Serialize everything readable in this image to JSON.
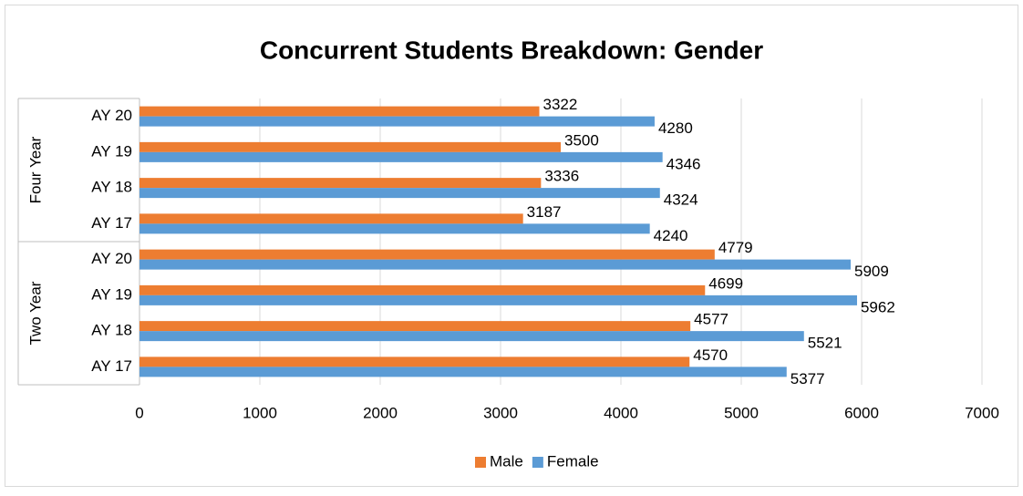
{
  "chart_data": {
    "type": "bar",
    "orientation": "horizontal",
    "title": "Concurrent Students Breakdown: Gender",
    "groups": [
      {
        "name": "Four Year",
        "categories": [
          "AY 20",
          "AY 19",
          "AY 18",
          "AY 17"
        ]
      },
      {
        "name": "Two Year",
        "categories": [
          "AY 20",
          "AY 19",
          "AY 18",
          "AY 17"
        ]
      }
    ],
    "series": [
      {
        "name": "Male",
        "color": "#ED7D31",
        "values": [
          3322,
          3500,
          3336,
          3187,
          4779,
          4699,
          4577,
          4570
        ]
      },
      {
        "name": "Female",
        "color": "#5B9BD5",
        "values": [
          4280,
          4346,
          4324,
          4240,
          5909,
          5962,
          5521,
          5377
        ]
      }
    ],
    "xlim": [
      0,
      7000
    ],
    "xticks": [
      0,
      1000,
      2000,
      3000,
      4000,
      5000,
      6000,
      7000
    ],
    "grid": true,
    "legend": "bottom"
  }
}
